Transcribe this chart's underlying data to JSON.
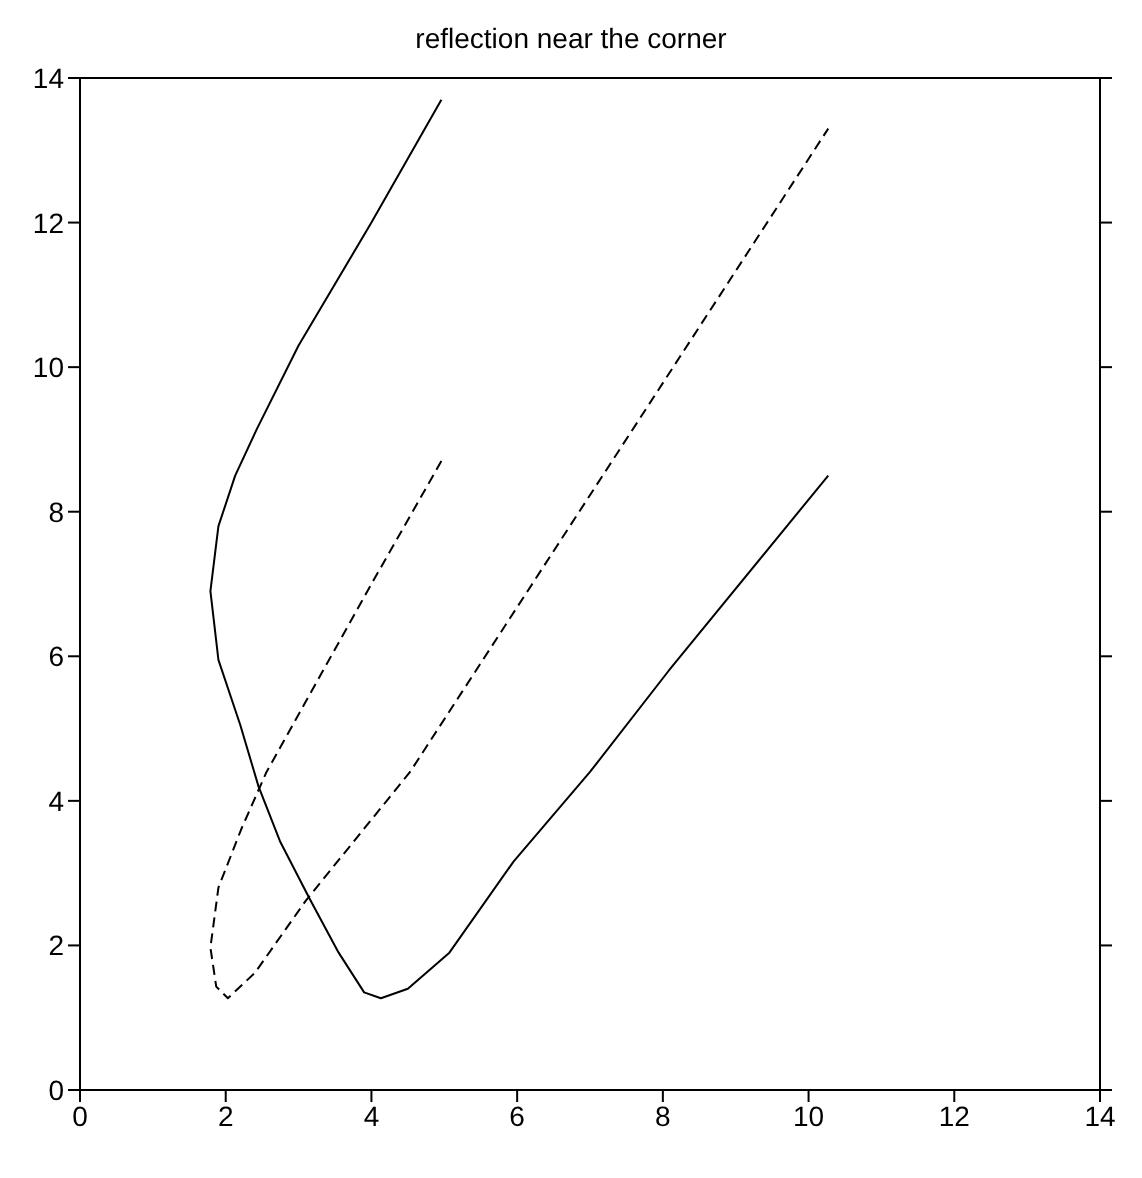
{
  "chart_data": {
    "type": "line",
    "title": "reflection near the corner",
    "xlim": [
      0,
      14
    ],
    "ylim": [
      0,
      14
    ],
    "xticks": [
      0,
      2,
      4,
      6,
      8,
      10,
      12,
      14
    ],
    "yticks": [
      0,
      2,
      4,
      6,
      8,
      10,
      12,
      14
    ],
    "grid": false,
    "marker": "none",
    "series": [
      {
        "color": "#000000",
        "line_style": "solid",
        "x": [
          4.96,
          4.0,
          3.0,
          2.43,
          2.13,
          1.9,
          1.79,
          1.9,
          2.2,
          2.45,
          2.75,
          3.15,
          3.55,
          3.9,
          4.13,
          4.5,
          5.07,
          5.95,
          7.0,
          8.08,
          10.27
        ],
        "values": [
          13.7,
          12.0,
          10.3,
          9.15,
          8.5,
          7.8,
          6.9,
          5.95,
          5.05,
          4.2,
          3.43,
          2.65,
          1.9,
          1.35,
          1.27,
          1.4,
          1.9,
          3.16,
          4.4,
          5.8,
          8.5
        ]
      },
      {
        "color": "#000000",
        "line_style": "dashed",
        "x": [
          4.96,
          4.0,
          3.49,
          2.56,
          2.21,
          1.9,
          1.79,
          1.87,
          2.03,
          2.4,
          3.1,
          4.53,
          10.27
        ],
        "values": [
          8.7,
          7.0,
          6.08,
          4.4,
          3.6,
          2.8,
          1.97,
          1.43,
          1.27,
          1.62,
          2.62,
          4.4,
          13.3
        ]
      }
    ]
  }
}
